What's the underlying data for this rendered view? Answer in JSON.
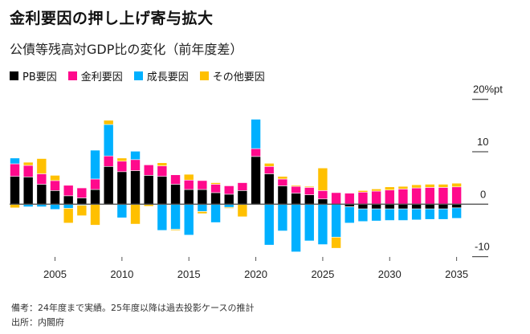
{
  "title": "金利要因の押し上げ寄与拡大",
  "subtitle": "公債等残高対GDP比の変化（前年度差）",
  "legend": [
    {
      "key": "pb",
      "label": "PB要因",
      "color": "#000000"
    },
    {
      "key": "interest",
      "label": "金利要因",
      "color": "#ff0a8c"
    },
    {
      "key": "growth",
      "label": "成長要因",
      "color": "#00b0ff"
    },
    {
      "key": "other",
      "label": "その他要因",
      "color": "#ffc000"
    }
  ],
  "notes": {
    "remark": "備考：24年度まで実績。25年度以降は過去投影ケースの推計",
    "source": "出所：内閣府"
  },
  "chart_data": {
    "type": "bar",
    "stacked": true,
    "title": "金利要因の押し上げ寄与拡大",
    "subtitle": "公債等残高対GDP比の変化（前年度差）",
    "xlabel": "",
    "ylabel": "%pt",
    "ylim": [
      -10,
      20
    ],
    "y_ticks": [
      {
        "value": 20,
        "label": "20%pt"
      },
      {
        "value": 10,
        "label": "10"
      },
      {
        "value": 0,
        "label": "0"
      },
      {
        "value": -10,
        "label": "-10"
      }
    ],
    "x_ticks": [
      2005,
      2010,
      2015,
      2020,
      2025,
      2030,
      2035
    ],
    "legend_position": "top-left",
    "categories": [
      2002,
      2003,
      2004,
      2005,
      2006,
      2007,
      2008,
      2009,
      2010,
      2011,
      2012,
      2013,
      2014,
      2015,
      2016,
      2017,
      2018,
      2019,
      2020,
      2021,
      2022,
      2023,
      2024,
      2025,
      2026,
      2027,
      2028,
      2029,
      2030,
      2031,
      2032,
      2033,
      2034,
      2035
    ],
    "series": [
      {
        "name": "PB要因",
        "key": "pb",
        "values": [
          5.3,
          5.2,
          3.8,
          2.6,
          1.6,
          1.2,
          2.8,
          7.2,
          6.2,
          6.4,
          5.5,
          5.3,
          3.8,
          2.8,
          2.8,
          2.2,
          1.9,
          2.6,
          9.1,
          5.8,
          3.5,
          2.1,
          1.8,
          1.0,
          0.0,
          -0.5,
          -0.9,
          -0.9,
          -0.9,
          -0.9,
          -0.9,
          -0.9,
          -0.9,
          -0.7
        ]
      },
      {
        "name": "金利要因",
        "key": "interest",
        "values": [
          2.4,
          2.2,
          2.0,
          1.9,
          2.0,
          1.9,
          2.0,
          2.0,
          2.0,
          2.1,
          2.0,
          2.0,
          1.8,
          1.8,
          1.7,
          1.6,
          1.6,
          1.5,
          1.5,
          1.4,
          1.3,
          1.3,
          1.4,
          1.6,
          2.2,
          2.1,
          2.3,
          2.5,
          2.7,
          2.9,
          3.1,
          3.2,
          3.2,
          3.3
        ]
      },
      {
        "name": "成長要因",
        "key": "growth",
        "values": [
          1.1,
          -0.5,
          -0.5,
          -1.0,
          -0.8,
          -0.2,
          5.5,
          6.0,
          -2.6,
          1.6,
          0.0,
          -5.0,
          -4.8,
          -5.9,
          -1.4,
          -3.5,
          -0.6,
          0.0,
          5.6,
          -7.8,
          -5.1,
          -9.1,
          -7.0,
          -7.7,
          -6.3,
          -3.1,
          -2.4,
          -2.3,
          -2.2,
          -2.2,
          -2.1,
          -2.0,
          -2.0,
          -2.0
        ]
      },
      {
        "name": "その他要因",
        "key": "other",
        "values": [
          -0.7,
          0.6,
          2.9,
          1.0,
          -2.8,
          -2.0,
          -4.0,
          0.8,
          0.6,
          -3.8,
          -0.4,
          0.6,
          -0.2,
          1.1,
          -0.4,
          0.3,
          -0.2,
          -2.4,
          0.0,
          0.6,
          0.5,
          0.2,
          0.2,
          4.3,
          -2.1,
          0.0,
          0.3,
          0.4,
          0.6,
          0.5,
          0.6,
          0.6,
          0.6,
          0.7
        ]
      }
    ]
  }
}
